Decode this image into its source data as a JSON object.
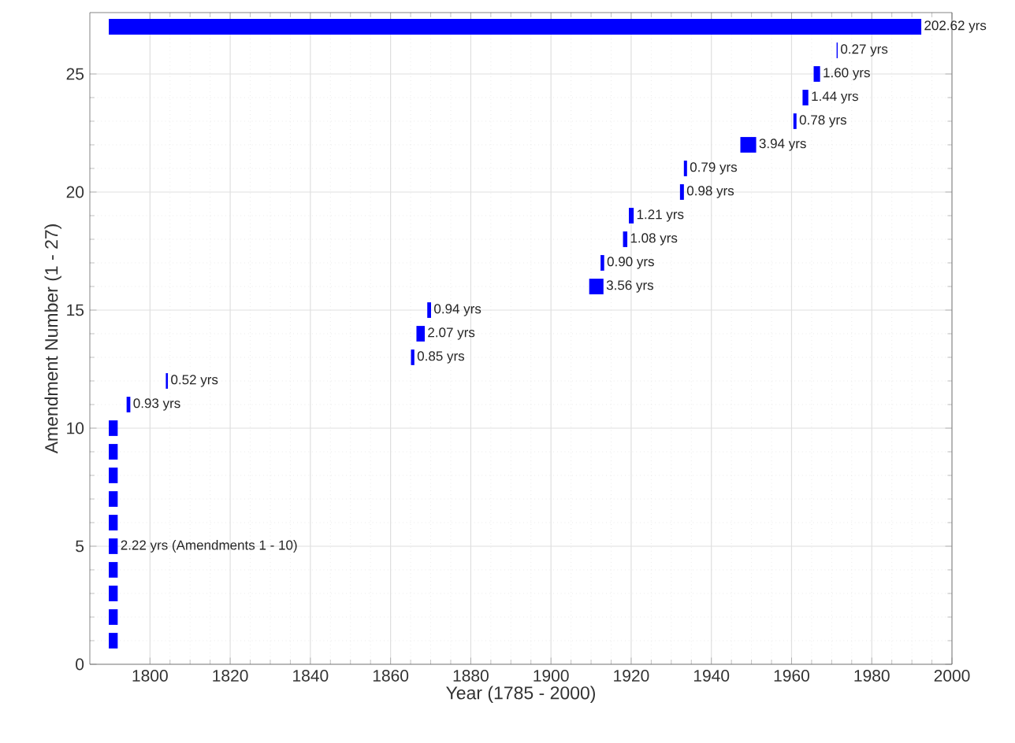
{
  "chart_data": {
    "type": "bar",
    "orientation": "horizontal",
    "xlabel": "Year (1785 - 2000)",
    "ylabel": "Amendment Number (1 - 27)",
    "x": [
      1,
      2,
      3,
      4,
      5,
      6,
      7,
      8,
      9,
      10,
      11,
      12,
      13,
      14,
      15,
      16,
      17,
      18,
      19,
      20,
      21,
      22,
      23,
      24,
      25,
      26,
      27
    ],
    "base": [
      1789.73,
      1789.73,
      1789.73,
      1789.73,
      1789.73,
      1789.73,
      1789.73,
      1789.73,
      1789.73,
      1789.73,
      1794.17,
      1803.95,
      1865.08,
      1866.45,
      1869.15,
      1909.53,
      1912.37,
      1917.96,
      1919.42,
      1932.17,
      1933.14,
      1947.23,
      1960.45,
      1962.74,
      1965.51,
      1971.23,
      1789.73
    ],
    "values": [
      2.22,
      2.22,
      2.22,
      2.22,
      2.22,
      2.22,
      2.22,
      2.22,
      2.22,
      2.22,
      0.93,
      0.52,
      0.85,
      2.07,
      0.94,
      3.56,
      0.9,
      1.08,
      1.21,
      0.98,
      0.79,
      3.94,
      0.78,
      1.44,
      1.6,
      0.27,
      202.62
    ],
    "value_labels": [
      null,
      null,
      null,
      null,
      "2.22 yrs (Amendments 1 - 10)",
      null,
      null,
      null,
      null,
      null,
      "0.93 yrs",
      "0.52 yrs",
      "0.85 yrs",
      "2.07 yrs",
      "0.94 yrs",
      "3.56 yrs",
      "0.90 yrs",
      "1.08 yrs",
      "1.21 yrs",
      "0.98 yrs",
      "0.79 yrs",
      "3.94 yrs",
      "0.78 yrs",
      "1.44 yrs",
      "1.60 yrs",
      "0.27 yrs",
      "202.62 yrs"
    ],
    "color": "#0000ff",
    "xlim": [
      1785,
      2000
    ],
    "xticks": [
      1800,
      1820,
      1840,
      1860,
      1880,
      1900,
      1920,
      1940,
      1960,
      1980,
      2000
    ],
    "ylim": [
      0,
      27.6
    ],
    "yticks": [
      0,
      5,
      10,
      15,
      20,
      25
    ],
    "grid": true
  }
}
